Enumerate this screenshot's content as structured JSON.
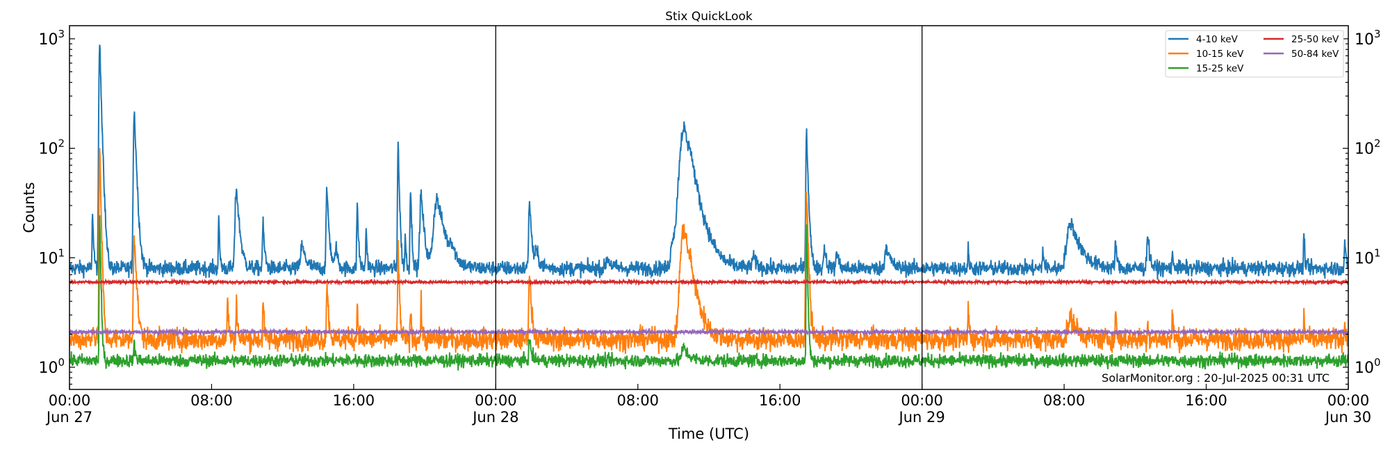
{
  "chart_data": {
    "type": "line",
    "title": "Stix QuickLook",
    "xlabel": "Time (UTC)",
    "ylabel": "Counts",
    "yscale": "log",
    "ylim": [
      0.63,
      1300
    ],
    "xlim_hours": [
      0,
      72
    ],
    "x_ticks": [
      {
        "hour": 0,
        "label": "00:00",
        "date": "Jun 27"
      },
      {
        "hour": 8,
        "label": "08:00",
        "date": ""
      },
      {
        "hour": 16,
        "label": "16:00",
        "date": ""
      },
      {
        "hour": 24,
        "label": "00:00",
        "date": "Jun 28"
      },
      {
        "hour": 32,
        "label": "08:00",
        "date": ""
      },
      {
        "hour": 40,
        "label": "16:00",
        "date": ""
      },
      {
        "hour": 48,
        "label": "00:00",
        "date": "Jun 29"
      },
      {
        "hour": 56,
        "label": "08:00",
        "date": ""
      },
      {
        "hour": 64,
        "label": "16:00",
        "date": ""
      },
      {
        "hour": 72,
        "label": "00:00",
        "date": "Jun 30"
      }
    ],
    "y_ticks": [
      {
        "exp": 0,
        "base": "10",
        "sup": "0"
      },
      {
        "exp": 1,
        "base": "10",
        "sup": "1"
      },
      {
        "exp": 2,
        "base": "10",
        "sup": "2"
      },
      {
        "exp": 3,
        "base": "10",
        "sup": "3"
      }
    ],
    "day_boundaries_hours": [
      24,
      48
    ],
    "legend_position": "top-right",
    "annotation": "SolarMonitor.org : 20-Jul-2025 00:31 UTC",
    "series": [
      {
        "name": "4-10 keV",
        "color": "#1f77b4",
        "baseline": 8.0,
        "noise": 0.035,
        "peaks": [
          [
            1.3,
            28,
            0.05
          ],
          [
            1.7,
            900,
            0.08
          ],
          [
            3.65,
            220,
            0.1
          ],
          [
            8.4,
            23,
            0.05
          ],
          [
            9.4,
            44,
            0.15
          ],
          [
            10.9,
            20,
            0.08
          ],
          [
            13.1,
            13,
            0.2
          ],
          [
            14.5,
            40,
            0.1
          ],
          [
            15.0,
            13,
            0.1
          ],
          [
            16.2,
            32,
            0.06
          ],
          [
            16.7,
            20,
            0.05
          ],
          [
            18.5,
            120,
            0.06
          ],
          [
            18.9,
            16,
            0.05
          ],
          [
            19.2,
            44,
            0.06
          ],
          [
            19.8,
            38,
            0.15
          ],
          [
            20.7,
            35,
            0.4
          ],
          [
            21.5,
            11,
            0.2
          ],
          [
            25.9,
            34,
            0.1
          ],
          [
            26.3,
            11,
            0.2
          ],
          [
            30.3,
            10,
            0.2
          ],
          [
            34.0,
            15,
            0.3
          ],
          [
            34.6,
            155,
            0.5
          ],
          [
            34.95,
            33,
            0.15
          ],
          [
            38.5,
            10,
            0.2
          ],
          [
            41.5,
            140,
            0.08
          ],
          [
            42.5,
            13,
            0.1
          ],
          [
            43.2,
            12,
            0.1
          ],
          [
            46.0,
            13,
            0.2
          ],
          [
            50.6,
            12,
            0.05
          ],
          [
            54.8,
            12,
            0.06
          ],
          [
            56.4,
            21,
            0.5
          ],
          [
            58.9,
            15,
            0.06
          ],
          [
            60.7,
            17,
            0.1
          ],
          [
            62.1,
            10,
            0.1
          ],
          [
            69.5,
            17,
            0.05
          ],
          [
            71.8,
            15,
            0.05
          ]
        ]
      },
      {
        "name": "10-15 keV",
        "color": "#ff7f0e",
        "baseline": 1.8,
        "noise": 0.05,
        "peaks": [
          [
            1.3,
            2.8,
            0.05
          ],
          [
            1.7,
            100,
            0.06
          ],
          [
            3.65,
            17,
            0.1
          ],
          [
            8.9,
            4.7,
            0.05
          ],
          [
            9.4,
            4.5,
            0.05
          ],
          [
            10.9,
            4.2,
            0.05
          ],
          [
            14.5,
            5.6,
            0.08
          ],
          [
            16.2,
            4,
            0.05
          ],
          [
            18.5,
            12,
            0.06
          ],
          [
            19.2,
            3.3,
            0.05
          ],
          [
            19.8,
            3.8,
            0.05
          ],
          [
            25.9,
            7,
            0.1
          ],
          [
            34.6,
            19,
            0.4
          ],
          [
            34.95,
            3.5,
            0.1
          ],
          [
            41.5,
            38,
            0.08
          ],
          [
            50.6,
            3.8,
            0.05
          ],
          [
            56.4,
            2.8,
            0.4
          ],
          [
            58.9,
            3.4,
            0.05
          ],
          [
            60.7,
            2.8,
            0.05
          ],
          [
            62.1,
            3.3,
            0.05
          ],
          [
            69.5,
            3.0,
            0.05
          ],
          [
            71.8,
            2.8,
            0.05
          ]
        ]
      },
      {
        "name": "15-25 keV",
        "color": "#2ca02c",
        "baseline": 1.15,
        "noise": 0.03,
        "peaks": [
          [
            1.7,
            23,
            0.05
          ],
          [
            3.65,
            1.6,
            0.08
          ],
          [
            25.9,
            1.8,
            0.1
          ],
          [
            34.6,
            1.5,
            0.3
          ],
          [
            41.5,
            20,
            0.05
          ]
        ]
      },
      {
        "name": "25-50 keV",
        "color": "#d62728",
        "baseline": 6.0,
        "noise": 0.006,
        "peaks": []
      },
      {
        "name": "50-84 keV",
        "color": "#9467bd",
        "baseline": 2.1,
        "noise": 0.008,
        "peaks": []
      }
    ]
  }
}
